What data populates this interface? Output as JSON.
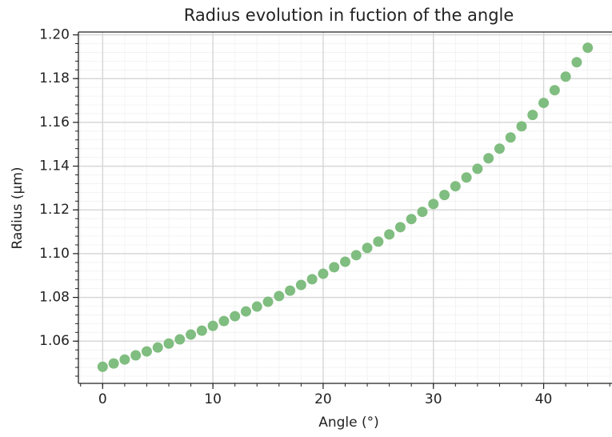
{
  "chart_data": {
    "type": "scatter",
    "title": "Radius evolution in fuction of the angle",
    "xlabel": "Angle (°)",
    "ylabel": "Radius (µm)",
    "x": [
      0,
      1,
      2,
      3,
      4,
      5,
      6,
      7,
      8,
      9,
      10,
      11,
      12,
      13,
      14,
      15,
      16,
      17,
      18,
      19,
      20,
      21,
      22,
      23,
      24,
      25,
      26,
      27,
      28,
      29,
      30,
      31,
      32,
      33,
      34,
      35,
      36,
      37,
      38,
      39,
      40,
      41,
      42,
      43,
      44
    ],
    "values": [
      1.0483,
      1.0498,
      1.0516,
      1.0535,
      1.0553,
      1.0571,
      1.0589,
      1.0608,
      1.063,
      1.0648,
      1.067,
      1.0692,
      1.0714,
      1.0736,
      1.0758,
      1.078,
      1.0806,
      1.0831,
      1.0857,
      1.0883,
      1.0908,
      1.0938,
      1.0963,
      1.0993,
      1.1026,
      1.1055,
      1.1088,
      1.1121,
      1.1158,
      1.1191,
      1.1227,
      1.1268,
      1.1308,
      1.1348,
      1.1388,
      1.1436,
      1.148,
      1.1531,
      1.1582,
      1.1634,
      1.1689,
      1.1747,
      1.1809,
      1.1875,
      1.1941
    ],
    "color": "#80bd80",
    "xlim": [
      -2.2,
      46.2
    ],
    "ylim": [
      1.0407,
      1.2013
    ],
    "xticks": [
      0,
      10,
      20,
      30,
      40
    ],
    "yticks": [
      1.06,
      1.08,
      {
        "value": 1.1,
        "label": "1.10"
      },
      1.12,
      1.14,
      1.16,
      1.18,
      {
        "value": 1.2,
        "label": "1.20"
      }
    ],
    "grid": true,
    "minor_grid": true,
    "xminor_step": 2,
    "yminor_step": 0.004
  }
}
